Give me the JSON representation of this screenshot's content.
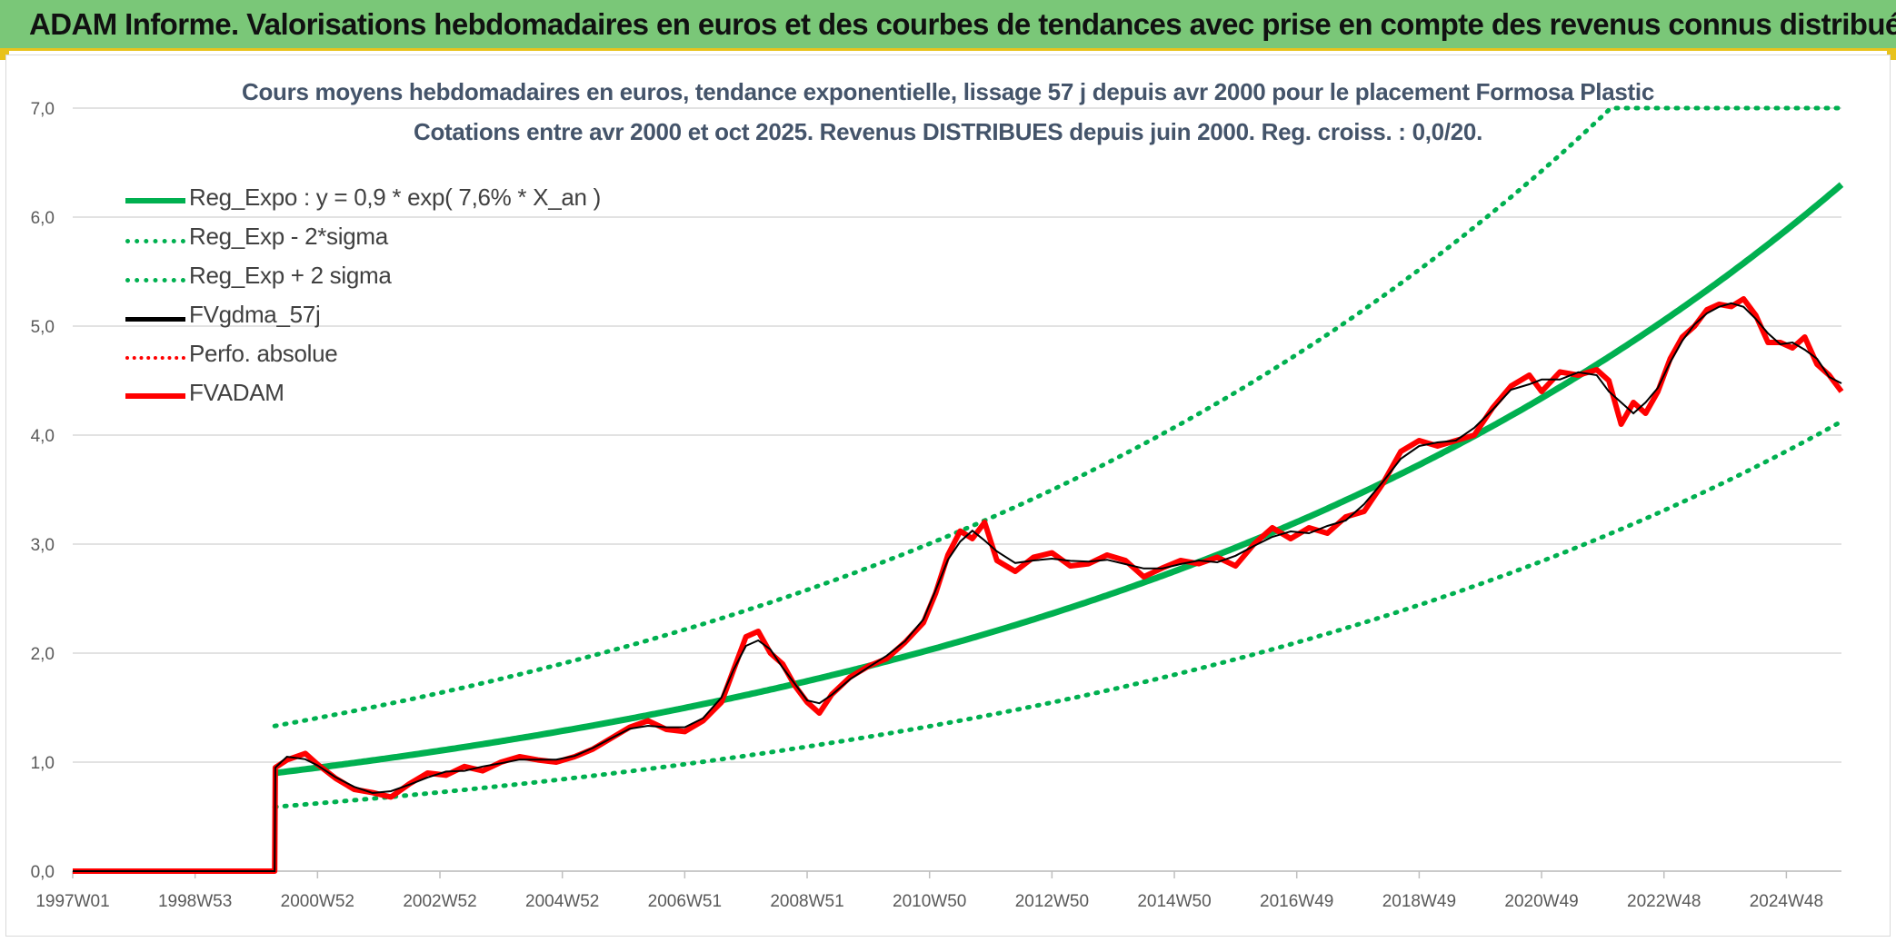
{
  "header": {
    "title": "ADAM Informe. Valorisations hebdomadaires en euros et des courbes de tendances avec prise en compte des revenus connus distribués"
  },
  "colors": {
    "banner": "#7ac778",
    "accent": "#e8c21c",
    "trend": "#00b050",
    "series_black": "#000000",
    "series_red": "#ff0000"
  },
  "chart_data": {
    "type": "line",
    "title": "Cours moyens hebdomadaires en euros, tendance exponentielle, lissage 57 j depuis avr 2000 pour le placement Formosa Plastic",
    "subtitle": "Cotations entre avr 2000 et oct 2025. Revenus DISTRIBUES depuis juin 2000. Reg. croiss. : 0,0/20.",
    "x_range": [
      1997.0,
      2025.9
    ],
    "x_tick_labels": [
      {
        "label": "1997W01",
        "x": 1997.0
      },
      {
        "label": "1998W53",
        "x": 1999.0
      },
      {
        "label": "2000W52",
        "x": 2001.0
      },
      {
        "label": "2002W52",
        "x": 2003.0
      },
      {
        "label": "2004W52",
        "x": 2005.0
      },
      {
        "label": "2006W51",
        "x": 2007.0
      },
      {
        "label": "2008W51",
        "x": 2009.0
      },
      {
        "label": "2010W50",
        "x": 2011.0
      },
      {
        "label": "2012W50",
        "x": 2013.0
      },
      {
        "label": "2014W50",
        "x": 2015.0
      },
      {
        "label": "2016W49",
        "x": 2017.0
      },
      {
        "label": "2018W49",
        "x": 2019.0
      },
      {
        "label": "2020W49",
        "x": 2021.0
      },
      {
        "label": "2022W48",
        "x": 2023.0
      },
      {
        "label": "2024W48",
        "x": 2025.0
      }
    ],
    "ylim": [
      0,
      7
    ],
    "y_ticks": [
      0,
      1,
      2,
      3,
      4,
      5,
      6,
      7
    ],
    "y_tick_labels": [
      "0,0",
      "1,0",
      "2,0",
      "3,0",
      "4,0",
      "5,0",
      "6,0",
      "7,0"
    ],
    "grid": true,
    "legend_position": "top-left",
    "trend": {
      "start_year": 2000.3,
      "a": 0.9,
      "rate": 0.076,
      "sigma_upper_factor": 1.48,
      "sigma_lower_factor": 0.655
    },
    "series": [
      {
        "name": "Reg_Expo : y = 0,9 * exp( 7,6% *  X_an )",
        "style": "solid-thick",
        "color": "#00b050"
      },
      {
        "name": "Reg_Exp - 2*sigma",
        "style": "dotted",
        "color": "#00b050"
      },
      {
        "name": "Reg_Exp + 2 sigma",
        "style": "dotted",
        "color": "#00b050"
      },
      {
        "name": "FVgdma_57j",
        "style": "solid",
        "color": "#000000"
      },
      {
        "name": "Perfo. absolue",
        "style": "dotted",
        "color": "#ff0000"
      },
      {
        "name": "FVADAM",
        "style": "solid-thick",
        "color": "#ff0000",
        "points": [
          [
            1997.0,
            0.0
          ],
          [
            2000.3,
            0.0
          ],
          [
            2000.31,
            0.95
          ],
          [
            2000.5,
            1.02
          ],
          [
            2000.8,
            1.08
          ],
          [
            2001.0,
            0.98
          ],
          [
            2001.3,
            0.85
          ],
          [
            2001.6,
            0.75
          ],
          [
            2001.9,
            0.72
          ],
          [
            2002.2,
            0.68
          ],
          [
            2002.5,
            0.8
          ],
          [
            2002.8,
            0.9
          ],
          [
            2003.1,
            0.88
          ],
          [
            2003.4,
            0.96
          ],
          [
            2003.7,
            0.92
          ],
          [
            2004.0,
            1.0
          ],
          [
            2004.3,
            1.05
          ],
          [
            2004.6,
            1.02
          ],
          [
            2004.9,
            1.0
          ],
          [
            2005.2,
            1.05
          ],
          [
            2005.5,
            1.12
          ],
          [
            2005.8,
            1.22
          ],
          [
            2006.1,
            1.32
          ],
          [
            2006.4,
            1.38
          ],
          [
            2006.7,
            1.3
          ],
          [
            2007.0,
            1.28
          ],
          [
            2007.3,
            1.38
          ],
          [
            2007.6,
            1.55
          ],
          [
            2007.8,
            1.85
          ],
          [
            2008.0,
            2.15
          ],
          [
            2008.2,
            2.2
          ],
          [
            2008.4,
            2.0
          ],
          [
            2008.6,
            1.9
          ],
          [
            2008.8,
            1.7
          ],
          [
            2009.0,
            1.55
          ],
          [
            2009.2,
            1.45
          ],
          [
            2009.4,
            1.62
          ],
          [
            2009.7,
            1.78
          ],
          [
            2010.0,
            1.88
          ],
          [
            2010.3,
            1.95
          ],
          [
            2010.6,
            2.1
          ],
          [
            2010.9,
            2.28
          ],
          [
            2011.1,
            2.55
          ],
          [
            2011.3,
            2.9
          ],
          [
            2011.5,
            3.12
          ],
          [
            2011.7,
            3.05
          ],
          [
            2011.9,
            3.2
          ],
          [
            2012.1,
            2.85
          ],
          [
            2012.4,
            2.75
          ],
          [
            2012.7,
            2.88
          ],
          [
            2013.0,
            2.92
          ],
          [
            2013.3,
            2.8
          ],
          [
            2013.6,
            2.82
          ],
          [
            2013.9,
            2.9
          ],
          [
            2014.2,
            2.85
          ],
          [
            2014.5,
            2.7
          ],
          [
            2014.8,
            2.78
          ],
          [
            2015.1,
            2.85
          ],
          [
            2015.4,
            2.82
          ],
          [
            2015.7,
            2.88
          ],
          [
            2016.0,
            2.8
          ],
          [
            2016.3,
            3.0
          ],
          [
            2016.6,
            3.15
          ],
          [
            2016.9,
            3.05
          ],
          [
            2017.2,
            3.15
          ],
          [
            2017.5,
            3.1
          ],
          [
            2017.8,
            3.25
          ],
          [
            2018.1,
            3.3
          ],
          [
            2018.4,
            3.55
          ],
          [
            2018.7,
            3.85
          ],
          [
            2019.0,
            3.95
          ],
          [
            2019.3,
            3.9
          ],
          [
            2019.6,
            3.95
          ],
          [
            2019.9,
            4.0
          ],
          [
            2020.2,
            4.25
          ],
          [
            2020.5,
            4.45
          ],
          [
            2020.8,
            4.55
          ],
          [
            2021.0,
            4.4
          ],
          [
            2021.3,
            4.58
          ],
          [
            2021.6,
            4.55
          ],
          [
            2021.9,
            4.6
          ],
          [
            2022.1,
            4.5
          ],
          [
            2022.3,
            4.1
          ],
          [
            2022.5,
            4.3
          ],
          [
            2022.7,
            4.2
          ],
          [
            2022.9,
            4.4
          ],
          [
            2023.1,
            4.7
          ],
          [
            2023.3,
            4.9
          ],
          [
            2023.5,
            5.0
          ],
          [
            2023.7,
            5.15
          ],
          [
            2023.9,
            5.2
          ],
          [
            2024.1,
            5.18
          ],
          [
            2024.3,
            5.25
          ],
          [
            2024.5,
            5.1
          ],
          [
            2024.7,
            4.85
          ],
          [
            2024.9,
            4.85
          ],
          [
            2025.1,
            4.8
          ],
          [
            2025.3,
            4.9
          ],
          [
            2025.5,
            4.65
          ],
          [
            2025.7,
            4.55
          ],
          [
            2025.9,
            4.4
          ]
        ]
      }
    ]
  }
}
